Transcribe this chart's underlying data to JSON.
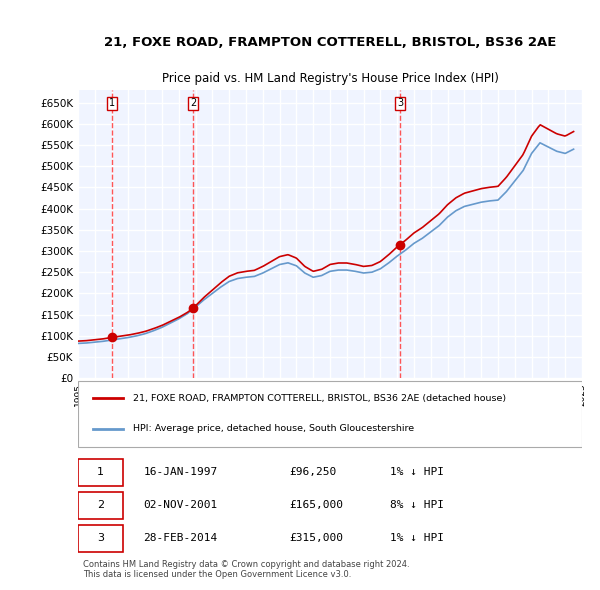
{
  "title_line1": "21, FOXE ROAD, FRAMPTON COTTERELL, BRISTOL, BS36 2AE",
  "title_line2": "Price paid vs. HM Land Registry's House Price Index (HPI)",
  "ylabel": "",
  "ylim": [
    0,
    680000
  ],
  "yticks": [
    0,
    50000,
    100000,
    150000,
    200000,
    250000,
    300000,
    350000,
    400000,
    450000,
    500000,
    550000,
    600000,
    650000
  ],
  "ytick_labels": [
    "£0",
    "£50K",
    "£100K",
    "£150K",
    "£200K",
    "£250K",
    "£300K",
    "£350K",
    "£400K",
    "£450K",
    "£500K",
    "£550K",
    "£600K",
    "£650K"
  ],
  "background_color": "#f0f4ff",
  "plot_bg_color": "#f0f4ff",
  "grid_color": "#ffffff",
  "sale_dates": [
    1997.04,
    2001.84,
    2014.16
  ],
  "sale_prices": [
    96250,
    165000,
    315000
  ],
  "sale_labels": [
    "1",
    "2",
    "3"
  ],
  "hpi_x": [
    1995.0,
    1995.5,
    1996.0,
    1996.5,
    1997.0,
    1997.5,
    1998.0,
    1998.5,
    1999.0,
    1999.5,
    2000.0,
    2000.5,
    2001.0,
    2001.5,
    2002.0,
    2002.5,
    2003.0,
    2003.5,
    2004.0,
    2004.5,
    2005.0,
    2005.5,
    2006.0,
    2006.5,
    2007.0,
    2007.5,
    2008.0,
    2008.5,
    2009.0,
    2009.5,
    2010.0,
    2010.5,
    2011.0,
    2011.5,
    2012.0,
    2012.5,
    2013.0,
    2013.5,
    2014.0,
    2014.5,
    2015.0,
    2015.5,
    2016.0,
    2016.5,
    2017.0,
    2017.5,
    2018.0,
    2018.5,
    2019.0,
    2019.5,
    2020.0,
    2020.5,
    2021.0,
    2021.5,
    2022.0,
    2022.5,
    2023.0,
    2023.5,
    2024.0,
    2024.5
  ],
  "hpi_y": [
    82000,
    83000,
    85000,
    87000,
    90000,
    93000,
    96000,
    100000,
    105000,
    112000,
    120000,
    130000,
    140000,
    152000,
    168000,
    185000,
    200000,
    215000,
    228000,
    235000,
    238000,
    240000,
    248000,
    258000,
    268000,
    272000,
    265000,
    248000,
    238000,
    242000,
    252000,
    255000,
    255000,
    252000,
    248000,
    250000,
    258000,
    272000,
    288000,
    302000,
    318000,
    330000,
    345000,
    360000,
    380000,
    395000,
    405000,
    410000,
    415000,
    418000,
    420000,
    440000,
    465000,
    490000,
    530000,
    555000,
    545000,
    535000,
    530000,
    540000
  ],
  "red_line_color": "#cc0000",
  "blue_line_color": "#6699cc",
  "sale_dot_color": "#cc0000",
  "vline_color": "#ff4444",
  "legend_label_red": "21, FOXE ROAD, FRAMPTON COTTERELL, BRISTOL, BS36 2AE (detached house)",
  "legend_label_blue": "HPI: Average price, detached house, South Gloucestershire",
  "table_data": [
    [
      "1",
      "16-JAN-1997",
      "£96,250",
      "1% ↓ HPI"
    ],
    [
      "2",
      "02-NOV-2001",
      "£165,000",
      "8% ↓ HPI"
    ],
    [
      "3",
      "28-FEB-2014",
      "£315,000",
      "1% ↓ HPI"
    ]
  ],
  "footer_line1": "Contains HM Land Registry data © Crown copyright and database right 2024.",
  "footer_line2": "This data is licensed under the Open Government Licence v3.0.",
  "xtick_start": 1995,
  "xtick_end": 2025,
  "xtick_step": 1
}
